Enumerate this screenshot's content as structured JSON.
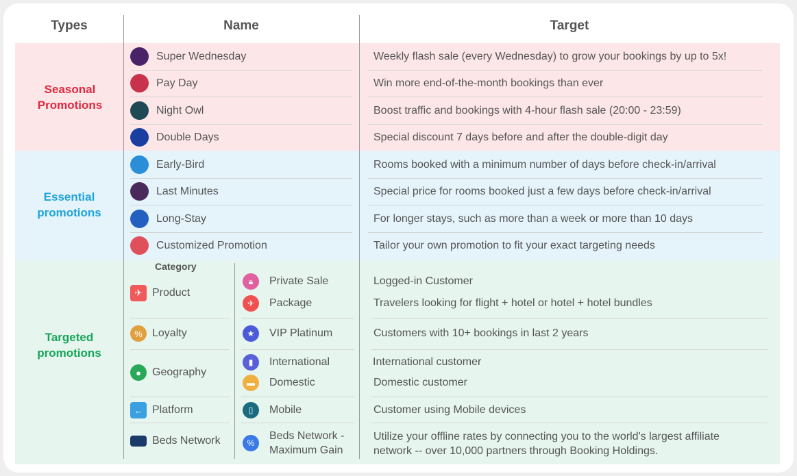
{
  "headers": {
    "types": "Types",
    "name": "Name",
    "target": "Target"
  },
  "colors": {
    "seasonal_bg": "#fde6e8",
    "essential_bg": "#e5f4fb",
    "targeted_bg": "#e6f5ee",
    "seasonal_text": "#e2283e",
    "essential_text": "#1ea3dc",
    "targeted_text": "#17a55a"
  },
  "seasonal": {
    "type": "Seasonal Promotions",
    "rows": [
      {
        "name": "Super Wednesday",
        "target": "Weekly flash sale (every Wednesday) to grow your bookings by up to 5x!",
        "icon_color": "#4a2268"
      },
      {
        "name": "Pay Day",
        "target": "Win more end-of-the-month  bookings than ever",
        "icon_color": "#c8324a"
      },
      {
        "name": "Night Owl",
        "target": "Boost traffic and bookings with 4-hour flash sale (20:00 - 23:59)",
        "icon_color": "#1f4a55"
      },
      {
        "name": "Double Days",
        "target": "Special discount 7 days before and after the double-digit day",
        "icon_color": "#1b3fa0"
      }
    ]
  },
  "essential": {
    "type": "Essential promotions",
    "rows": [
      {
        "name": "Early-Bird",
        "target": "Rooms booked with a minimum number of days before check-in/arrival",
        "icon_color": "#2a8fd8"
      },
      {
        "name": "Last Minutes",
        "target": "Special price for rooms booked just a few days before check-in/arrival",
        "icon_color": "#4a2a5a"
      },
      {
        "name": "Long-Stay",
        "target": "For longer stays, such as more than a week or more than 10 days",
        "icon_color": "#2460c0"
      },
      {
        "name": "Customized  Promotion",
        "target": "Tailor your own promotion to fit your exact targeting needs",
        "icon_color": "#e0505a"
      }
    ]
  },
  "targeted": {
    "type": "Targeted promotions",
    "category_label": "Category",
    "categories": [
      {
        "name": "Product",
        "icon": "hotel-flight-icon",
        "color": "#f05a5a"
      },
      {
        "name": "Loyalty",
        "icon": "loyalty-user-icon",
        "color": "#e0a040"
      },
      {
        "name": "Geography",
        "icon": "globe-pin-icon",
        "color": "#2aa85a"
      },
      {
        "name": "Platform",
        "icon": "mobile-arrow-icon",
        "color": "#3aa0e0"
      },
      {
        "name": "Beds Network",
        "icon": "bed-tag-icon",
        "color": "#1a3a6a"
      }
    ],
    "items": [
      {
        "name": "Private Sale",
        "target": "Logged-in Customer",
        "icon": "lock-icon",
        "color": "#e060a0"
      },
      {
        "name": "Package",
        "target": "Travelers looking for flight + hotel or hotel + hotel bundles",
        "icon": "package-icon",
        "color": "#f05050"
      },
      {
        "name": "VIP Platinum",
        "target": "Customers with 10+ bookings in last 2 years",
        "icon": "star-icon",
        "color": "#4a5ad8"
      },
      {
        "name": "International",
        "target": "International customer",
        "icon": "luggage-icon",
        "color": "#5a60d8"
      },
      {
        "name": "Domestic",
        "target": "Domestic customer",
        "icon": "backpack-icon",
        "color": "#f0b040"
      },
      {
        "name": "Mobile",
        "target": "Customer using Mobile devices",
        "icon": "phone-icon",
        "color": "#1a6a80"
      },
      {
        "name": "Beds Network -",
        "name2": "Maximum Gain",
        "target": "Utilize your offline rates by connecting you to the world's largest affiliate",
        "target2": "network  -- over 10,000 partners through Booking Holdings.",
        "icon": "percent-icon",
        "color": "#3a7ae8"
      }
    ]
  }
}
